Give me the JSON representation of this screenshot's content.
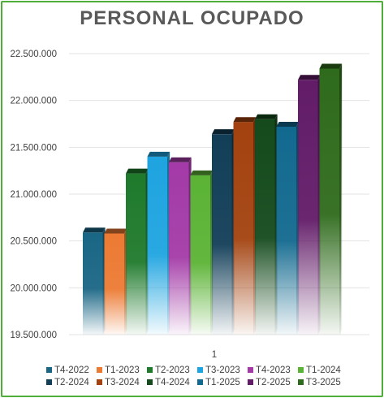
{
  "chart_data": {
    "type": "bar",
    "title": "PERSONAL OCUPADO",
    "categories": [
      "1"
    ],
    "xlabel": "",
    "ylabel": "",
    "ylim": [
      19500000,
      22500000
    ],
    "yticks": [
      19500000,
      20000000,
      20500000,
      21000000,
      21500000,
      22000000,
      22500000
    ],
    "ytick_labels": [
      "19.500.000",
      "20.000.000",
      "20.500.000",
      "21.000.000",
      "21.500.000",
      "22.000.000",
      "22.500.000"
    ],
    "grid": true,
    "legend_position": "bottom",
    "series": [
      {
        "name": "T4-2022",
        "values": [
          20590000
        ],
        "color": "#1a6685"
      },
      {
        "name": "T1-2023",
        "values": [
          20580000
        ],
        "color": "#ec7a33"
      },
      {
        "name": "T2-2023",
        "values": [
          21220000
        ],
        "color": "#1f7a2c"
      },
      {
        "name": "T3-2023",
        "values": [
          21400000
        ],
        "color": "#1ea4e0"
      },
      {
        "name": "T4-2023",
        "values": [
          21340000
        ],
        "color": "#a33aa7"
      },
      {
        "name": "T1-2024",
        "values": [
          21200000
        ],
        "color": "#5bb335"
      },
      {
        "name": "T2-2024",
        "values": [
          21640000
        ],
        "color": "#123e58"
      },
      {
        "name": "T3-2024",
        "values": [
          21770000
        ],
        "color": "#a3420f"
      },
      {
        "name": "T4-2024",
        "values": [
          21800000
        ],
        "color": "#144a1c"
      },
      {
        "name": "T1-2025",
        "values": [
          21720000
        ],
        "color": "#12698f"
      },
      {
        "name": "T2-2025",
        "values": [
          22220000
        ],
        "color": "#621c68"
      },
      {
        "name": "T3-2025",
        "values": [
          22340000
        ],
        "color": "#2f6b1c"
      }
    ]
  }
}
